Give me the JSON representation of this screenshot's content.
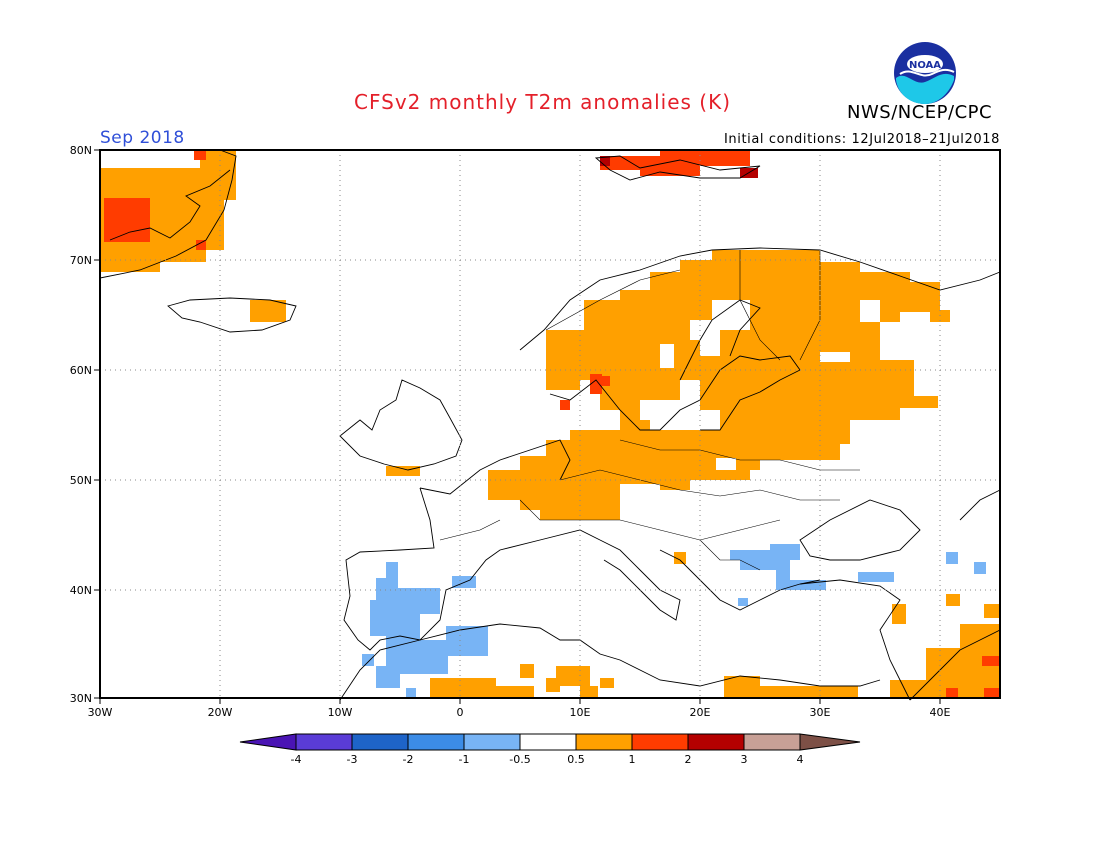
{
  "title": "CFSv2 monthly T2m anomalies (K)",
  "agency": "NWS/NCEP/CPC",
  "period": "Sep 2018",
  "initial_conditions": "Initial conditions: 12Jul2018–21Jul2018",
  "logo_text": "NOAA",
  "map": {
    "lon_range": [
      -30,
      45
    ],
    "lat_range": [
      30,
      80
    ],
    "lon_ticks": [
      "30W",
      "20W",
      "10W",
      "0",
      "10E",
      "20E",
      "30E",
      "40E"
    ],
    "lat_ticks": [
      "80N",
      "70N",
      "60N",
      "50N",
      "40N",
      "30N"
    ]
  },
  "colorbar": {
    "tick_labels": [
      "-4",
      "-3",
      "-2",
      "-1",
      "-0.5",
      "0.5",
      "1",
      "2",
      "3",
      "4"
    ],
    "colors": [
      "#4a14b4",
      "#5a3cd6",
      "#1e64c8",
      "#3c8ce6",
      "#78b4f5",
      "#ffffff",
      "#ffa000",
      "#ff3c00",
      "#b40000",
      "#c8a096",
      "#7d5046"
    ]
  },
  "legend_colors": {
    "cold_light": "#78b4f5",
    "warm_orange": "#ffa000",
    "warm_red": "#ff3c00",
    "warm_darkred": "#b40000"
  }
}
